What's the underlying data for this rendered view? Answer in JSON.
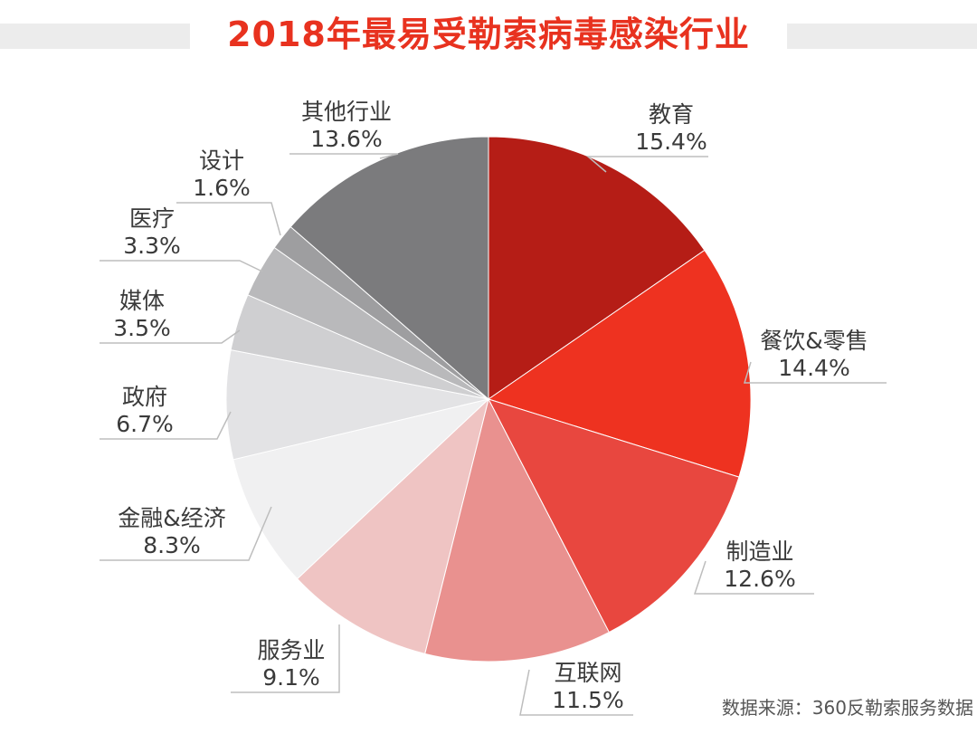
{
  "chart_data": {
    "type": "pie",
    "title": "2018年最易受勒索病毒感染行业",
    "source": "数据来源：360反勒索服务数据",
    "slices": [
      {
        "label": "教育",
        "value": 15.4,
        "value_label": "15.4%",
        "color": "#b51d16"
      },
      {
        "label": "餐饮&零售",
        "value": 14.4,
        "value_label": "14.4%",
        "color": "#ee3220"
      },
      {
        "label": "制造业",
        "value": 12.6,
        "value_label": "12.6%",
        "color": "#e8473f"
      },
      {
        "label": "互联网",
        "value": 11.5,
        "value_label": "11.5%",
        "color": "#e9918f"
      },
      {
        "label": "服务业",
        "value": 9.1,
        "value_label": "9.1%",
        "color": "#efc4c3"
      },
      {
        "label": "金融&经济",
        "value": 8.3,
        "value_label": "8.3%",
        "color": "#f0f0f1"
      },
      {
        "label": "政府",
        "value": 6.7,
        "value_label": "6.7%",
        "color": "#e3e3e5"
      },
      {
        "label": "媒体",
        "value": 3.5,
        "value_label": "3.5%",
        "color": "#cfcfd1"
      },
      {
        "label": "医疗",
        "value": 3.3,
        "value_label": "3.3%",
        "color": "#b9b9bb"
      },
      {
        "label": "设计",
        "value": 1.6,
        "value_label": "1.6%",
        "color": "#9e9ea0"
      },
      {
        "label": "其他行业",
        "value": 13.6,
        "value_label": "13.6%",
        "color": "#7b7b7d"
      }
    ]
  }
}
